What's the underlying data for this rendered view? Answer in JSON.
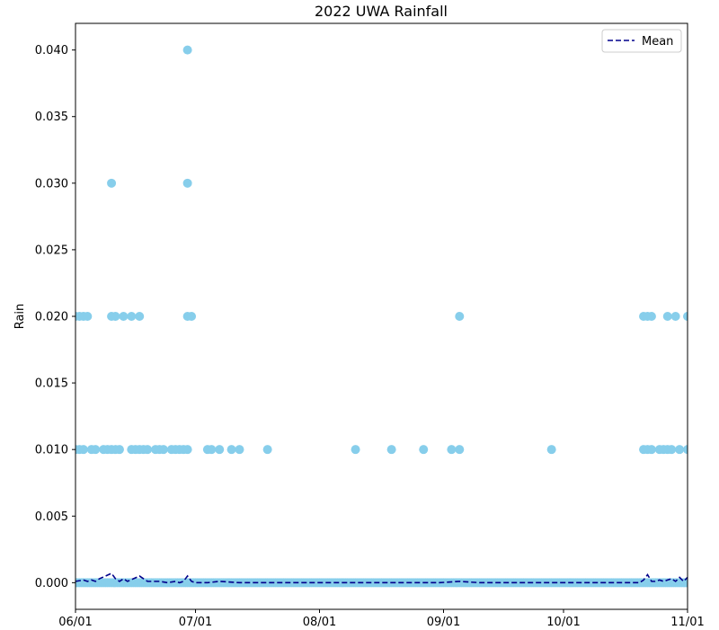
{
  "chart_data": {
    "type": "scatter",
    "title": "2022 UWA Rainfall",
    "xlabel": "",
    "ylabel": "Rain",
    "xlim": [
      "2022-06-01",
      "2022-11-01"
    ],
    "ylim": [
      -0.002,
      0.042
    ],
    "x_ticks": [
      {
        "date": "2022-06-01",
        "label": "06/01"
      },
      {
        "date": "2022-07-01",
        "label": "07/01"
      },
      {
        "date": "2022-08-01",
        "label": "08/01"
      },
      {
        "date": "2022-09-01",
        "label": "09/01"
      },
      {
        "date": "2022-10-01",
        "label": "10/01"
      },
      {
        "date": "2022-11-01",
        "label": "11/01"
      }
    ],
    "y_ticks": [
      {
        "value": 0.0,
        "label": "0.000"
      },
      {
        "value": 0.005,
        "label": "0.005"
      },
      {
        "value": 0.01,
        "label": "0.010"
      },
      {
        "value": 0.015,
        "label": "0.015"
      },
      {
        "value": 0.02,
        "label": "0.020"
      },
      {
        "value": 0.025,
        "label": "0.025"
      },
      {
        "value": 0.03,
        "label": "0.030"
      },
      {
        "value": 0.035,
        "label": "0.035"
      },
      {
        "value": 0.04,
        "label": "0.040"
      }
    ],
    "grid": false,
    "legend": {
      "placement": "top-right",
      "entries": [
        {
          "label": "Mean",
          "style": "dashed-line"
        }
      ]
    },
    "colors": {
      "points": "#87ceeb",
      "mean_line": "#00008b"
    },
    "points": [
      {
        "x": "2022-06-01",
        "y": 0.02
      },
      {
        "x": "2022-06-02",
        "y": 0.02
      },
      {
        "x": "2022-06-03",
        "y": 0.02
      },
      {
        "x": "2022-06-04",
        "y": 0.02
      },
      {
        "x": "2022-06-01",
        "y": 0.01
      },
      {
        "x": "2022-06-02",
        "y": 0.01
      },
      {
        "x": "2022-06-03",
        "y": 0.01
      },
      {
        "x": "2022-06-05",
        "y": 0.01
      },
      {
        "x": "2022-06-06",
        "y": 0.01
      },
      {
        "x": "2022-06-08",
        "y": 0.01
      },
      {
        "x": "2022-06-09",
        "y": 0.01
      },
      {
        "x": "2022-06-10",
        "y": 0.01
      },
      {
        "x": "2022-06-11",
        "y": 0.01
      },
      {
        "x": "2022-06-12",
        "y": 0.01
      },
      {
        "x": "2022-06-10",
        "y": 0.03
      },
      {
        "x": "2022-06-10",
        "y": 0.02
      },
      {
        "x": "2022-06-11",
        "y": 0.02
      },
      {
        "x": "2022-06-13",
        "y": 0.02
      },
      {
        "x": "2022-06-15",
        "y": 0.02
      },
      {
        "x": "2022-06-17",
        "y": 0.02
      },
      {
        "x": "2022-06-15",
        "y": 0.01
      },
      {
        "x": "2022-06-16",
        "y": 0.01
      },
      {
        "x": "2022-06-17",
        "y": 0.01
      },
      {
        "x": "2022-06-18",
        "y": 0.01
      },
      {
        "x": "2022-06-19",
        "y": 0.01
      },
      {
        "x": "2022-06-21",
        "y": 0.01
      },
      {
        "x": "2022-06-22",
        "y": 0.01
      },
      {
        "x": "2022-06-23",
        "y": 0.01
      },
      {
        "x": "2022-06-25",
        "y": 0.01
      },
      {
        "x": "2022-06-26",
        "y": 0.01
      },
      {
        "x": "2022-06-27",
        "y": 0.01
      },
      {
        "x": "2022-06-28",
        "y": 0.01
      },
      {
        "x": "2022-06-29",
        "y": 0.01
      },
      {
        "x": "2022-06-29",
        "y": 0.04
      },
      {
        "x": "2022-06-29",
        "y": 0.03
      },
      {
        "x": "2022-06-29",
        "y": 0.02
      },
      {
        "x": "2022-06-30",
        "y": 0.02
      },
      {
        "x": "2022-07-04",
        "y": 0.01
      },
      {
        "x": "2022-07-05",
        "y": 0.01
      },
      {
        "x": "2022-07-07",
        "y": 0.01
      },
      {
        "x": "2022-07-10",
        "y": 0.01
      },
      {
        "x": "2022-07-12",
        "y": 0.01
      },
      {
        "x": "2022-07-19",
        "y": 0.01
      },
      {
        "x": "2022-08-10",
        "y": 0.01
      },
      {
        "x": "2022-08-19",
        "y": 0.01
      },
      {
        "x": "2022-08-27",
        "y": 0.01
      },
      {
        "x": "2022-09-03",
        "y": 0.01
      },
      {
        "x": "2022-09-05",
        "y": 0.01
      },
      {
        "x": "2022-09-05",
        "y": 0.02
      },
      {
        "x": "2022-09-28",
        "y": 0.01
      },
      {
        "x": "2022-10-21",
        "y": 0.02
      },
      {
        "x": "2022-10-22",
        "y": 0.02
      },
      {
        "x": "2022-10-23",
        "y": 0.02
      },
      {
        "x": "2022-10-27",
        "y": 0.02
      },
      {
        "x": "2022-10-29",
        "y": 0.02
      },
      {
        "x": "2022-11-01",
        "y": 0.02
      },
      {
        "x": "2022-10-21",
        "y": 0.01
      },
      {
        "x": "2022-10-22",
        "y": 0.01
      },
      {
        "x": "2022-10-23",
        "y": 0.01
      },
      {
        "x": "2022-10-25",
        "y": 0.01
      },
      {
        "x": "2022-10-26",
        "y": 0.01
      },
      {
        "x": "2022-10-27",
        "y": 0.01
      },
      {
        "x": "2022-10-28",
        "y": 0.01
      },
      {
        "x": "2022-10-30",
        "y": 0.01
      },
      {
        "x": "2022-11-01",
        "y": 0.01
      }
    ],
    "zero_points": {
      "y": 0.0,
      "from": "2022-06-01",
      "to": "2022-11-01",
      "step_days": 0.5
    },
    "mean_line": [
      {
        "x": "2022-06-01",
        "y": 0.0001
      },
      {
        "x": "2022-06-03",
        "y": 0.0002
      },
      {
        "x": "2022-06-04",
        "y": 0.0001
      },
      {
        "x": "2022-06-05",
        "y": 0.0002
      },
      {
        "x": "2022-06-06",
        "y": 0.0001
      },
      {
        "x": "2022-06-07",
        "y": 0.0003
      },
      {
        "x": "2022-06-10",
        "y": 0.0007
      },
      {
        "x": "2022-06-11",
        "y": 0.0003
      },
      {
        "x": "2022-06-12",
        "y": 0.0001
      },
      {
        "x": "2022-06-13",
        "y": 0.0003
      },
      {
        "x": "2022-06-14",
        "y": 0.0001
      },
      {
        "x": "2022-06-17",
        "y": 0.0005
      },
      {
        "x": "2022-06-18",
        "y": 0.0003
      },
      {
        "x": "2022-06-19",
        "y": 0.0001
      },
      {
        "x": "2022-06-22",
        "y": 0.0001
      },
      {
        "x": "2022-06-24",
        "y": 0.0
      },
      {
        "x": "2022-06-26",
        "y": 0.0001
      },
      {
        "x": "2022-06-27",
        "y": 0.0
      },
      {
        "x": "2022-06-28",
        "y": 0.0001
      },
      {
        "x": "2022-06-29",
        "y": 0.0005
      },
      {
        "x": "2022-06-30",
        "y": 0.0001
      },
      {
        "x": "2022-07-01",
        "y": 0.0
      },
      {
        "x": "2022-07-04",
        "y": 0.0
      },
      {
        "x": "2022-07-07",
        "y": 0.0001
      },
      {
        "x": "2022-07-12",
        "y": 0.0
      },
      {
        "x": "2022-07-19",
        "y": 0.0
      },
      {
        "x": "2022-08-31",
        "y": 0.0
      },
      {
        "x": "2022-09-05",
        "y": 0.0001
      },
      {
        "x": "2022-09-10",
        "y": 0.0
      },
      {
        "x": "2022-10-20",
        "y": 0.0
      },
      {
        "x": "2022-10-21",
        "y": 0.0002
      },
      {
        "x": "2022-10-22",
        "y": 0.0006
      },
      {
        "x": "2022-10-23",
        "y": 0.0001
      },
      {
        "x": "2022-10-24",
        "y": 0.0001
      },
      {
        "x": "2022-10-25",
        "y": 0.0002
      },
      {
        "x": "2022-10-26",
        "y": 0.0001
      },
      {
        "x": "2022-10-27",
        "y": 0.0002
      },
      {
        "x": "2022-10-28",
        "y": 0.0003
      },
      {
        "x": "2022-10-29",
        "y": 0.0001
      },
      {
        "x": "2022-10-30",
        "y": 0.0004
      },
      {
        "x": "2022-10-31",
        "y": 0.0001
      },
      {
        "x": "2022-11-01",
        "y": 0.0004
      }
    ]
  }
}
